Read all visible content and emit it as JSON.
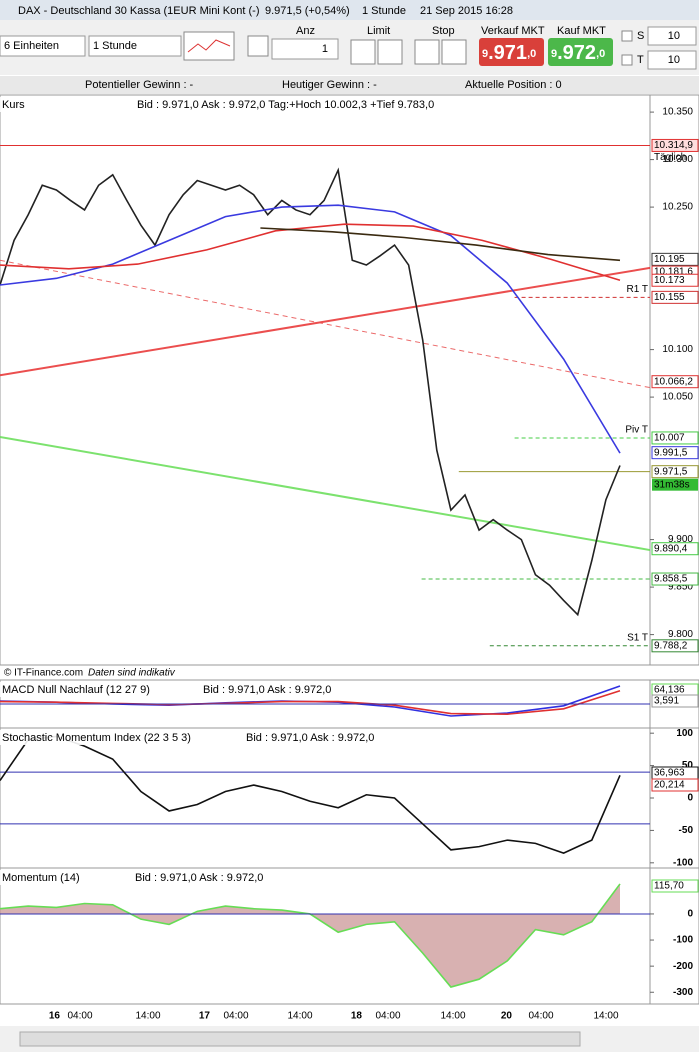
{
  "window_title": "DAX - Deutschland 30 Kassa (1EUR Mini Kont (-)",
  "price": "9.971,5 (+0,54%)",
  "interval": "1 Stunde",
  "datetime": "21 Sep 2015 16:28",
  "toolbar": {
    "units": "6 Einheiten",
    "timeframe": "1 Stunde",
    "anz_label": "Anz",
    "anz_value": "1",
    "limit": "Limit",
    "stop": "Stop",
    "sell_label": "Verkauf MKT",
    "sell_parts": [
      "9",
      ".971",
      ",0"
    ],
    "buy_label": "Kauf MKT",
    "buy_parts": [
      "9",
      ".972",
      ",0"
    ],
    "s_label": "S",
    "s_value": "10",
    "t_label": "T",
    "t_value": "10"
  },
  "status": [
    "Potentieller Gewinn : -",
    "Heutiger Gewinn : -",
    "Aktuelle Position : 0"
  ],
  "footer": [
    "© IT-Finance.com",
    "Daten sind indikativ"
  ],
  "x_axis_labels": [
    "16",
    "04:00",
    "14:00",
    "17",
    "04:00",
    "14:00",
    "18",
    "04:00",
    "14:00",
    "20",
    "04:00",
    "14:00"
  ],
  "chart_data": [
    {
      "type": "line",
      "title": "Kurs",
      "quote": "Bid : 9.971,0 Ask : 9.972,0 Tag:+Hoch 10.002,3 +Tief 9.783,0",
      "ylim": [
        9768,
        10368
      ],
      "yticks": [
        {
          "value": 10350,
          "label": "10.350"
        },
        {
          "value": 10300,
          "label": "10.300"
        },
        {
          "value": 10250,
          "label": "10.250"
        },
        {
          "value": 10100,
          "label": "10.100"
        },
        {
          "value": 10050,
          "label": "10.050"
        },
        {
          "value": 9900,
          "label": "9.900"
        },
        {
          "value": 9850,
          "label": "9.850"
        },
        {
          "value": 9800,
          "label": "9.800"
        }
      ],
      "series": [
        {
          "name": "Kurs",
          "color": "#222222",
          "values": [
            10168,
            10215,
            10242,
            10273,
            10268,
            10257,
            10247,
            10273,
            10284,
            10257,
            10231,
            10210,
            10242,
            10263,
            10278,
            10273,
            10268,
            10273,
            10263,
            10242,
            10257,
            10247,
            10242,
            10257,
            10289,
            10194,
            10189,
            10199,
            10210,
            10189,
            10110,
            9994,
            9931,
            9947,
            9910,
            9921,
            9910,
            9900,
            9863,
            9852,
            9836,
            9821,
            9878,
            9942,
            9978
          ]
        },
        {
          "color": "#3a3ae0",
          "values": [
            10168,
            10175,
            10190,
            10215,
            10240,
            10250,
            10252,
            10245,
            10220,
            10170,
            10090,
            9991
          ]
        },
        {
          "color": "#e03030",
          "values": [
            10189,
            10185,
            10190,
            10205,
            10225,
            10232,
            10230,
            10215,
            10195,
            10173
          ]
        },
        {
          "color": "#3a2a10",
          "values": [
            10228,
            10224,
            10218,
            10210,
            10200,
            10194
          ],
          "start_fraction": 0.42
        }
      ],
      "trendlines": [
        {
          "color": "#e83030",
          "start": 10073,
          "end": 10186
        },
        {
          "color": "#e85050",
          "start": 10194,
          "end": 10060,
          "dashed": true
        },
        {
          "color": "#66dd55",
          "start": 10008,
          "end": 9889
        }
      ],
      "levels": [
        {
          "value": 10314.9,
          "label": "10.314,9",
          "tag": "Täglich",
          "color": "#e03030",
          "from": 0
        },
        {
          "value": 10155,
          "label": "10.155",
          "tag": "R1 T",
          "color": "#d03030",
          "from": 0.83,
          "dashed": true
        },
        {
          "value": 10007,
          "label": "10.007",
          "tag": "Piv T",
          "color": "#44cc44",
          "from": 0.83,
          "dashed": true
        },
        {
          "value": 9971.5,
          "label": "9.971,5",
          "color": "#999933",
          "from": 0.74,
          "countdown": "31m38s"
        },
        {
          "value": 9858.5,
          "label": "9.858,5",
          "color": "#44bb44",
          "from": 0.68,
          "dashed": true
        },
        {
          "value": 9788.2,
          "label": "9.788,2",
          "tag": "S1 T",
          "color": "#338833",
          "from": 0.79,
          "dashed": true
        }
      ],
      "price_tags": [
        {
          "value": 10195,
          "label": "10.195",
          "color": "#3a3a3a"
        },
        {
          "value": 10181.6,
          "label": "10.181,6",
          "color": "#e03030"
        },
        {
          "value": 10173,
          "label": "10.173",
          "color": "#e03030"
        },
        {
          "value": 10066.2,
          "label": "10.066,2",
          "color": "#e03030"
        },
        {
          "value": 9991.5,
          "label": "9.991,5",
          "color": "#3a3ae0"
        },
        {
          "value": 9890.4,
          "label": "9.890,4",
          "color": "#44cc44"
        }
      ]
    },
    {
      "type": "line",
      "title": "MACD Null Nachlauf (12 27 9)",
      "quote": "Bid : 9.971,0 Ask : 9.972,0",
      "ylim": [
        -40,
        40
      ],
      "series": [
        {
          "color": "#3030e0",
          "values": [
            5,
            3,
            0,
            -2,
            2,
            5,
            3,
            -5,
            -20,
            -15,
            -3,
            30
          ]
        },
        {
          "color": "#e03030",
          "values": [
            4,
            3,
            1,
            -1,
            1,
            4,
            4,
            -2,
            -16,
            -17,
            -8,
            22
          ]
        }
      ],
      "tags": [
        {
          "label": "64,136",
          "color": "#66dd55"
        },
        {
          "label": "3,591",
          "color": "#999999"
        }
      ]
    },
    {
      "type": "line",
      "title": "Stochastic Momentum Index (22 3 5 3)",
      "quote": "Bid : 9.971,0 Ask : 9.972,0",
      "ylim": [
        -108,
        108
      ],
      "yticks": [
        100,
        50,
        0,
        -50,
        -100
      ],
      "levels": [
        40,
        -40
      ],
      "series": [
        {
          "color": "#111111",
          "values": [
            27,
            90,
            95,
            80,
            60,
            10,
            -20,
            -10,
            10,
            20,
            10,
            -5,
            -15,
            5,
            0,
            -40,
            -80,
            -75,
            -65,
            -70,
            -85,
            -65,
            35
          ]
        }
      ],
      "tags": [
        {
          "label": "36,963",
          "color": "#111111"
        },
        {
          "label": "20,214",
          "color": "#e03030"
        }
      ]
    },
    {
      "type": "area",
      "title": "Momentum (14)",
      "quote": "Bid : 9.971,0 Ask : 9.972,0",
      "ylim": [
        -345,
        176
      ],
      "yticks": [
        0,
        -100,
        -200,
        -300
      ],
      "series": [
        {
          "color": "#66dd55",
          "values": [
            20,
            30,
            25,
            40,
            35,
            -20,
            -40,
            10,
            30,
            20,
            15,
            0,
            -70,
            -40,
            -30,
            -150,
            -280,
            -250,
            -180,
            -60,
            -80,
            -30,
            115
          ]
        }
      ],
      "tags": [
        {
          "label": "115,70",
          "color": "#66dd55"
        }
      ]
    }
  ]
}
